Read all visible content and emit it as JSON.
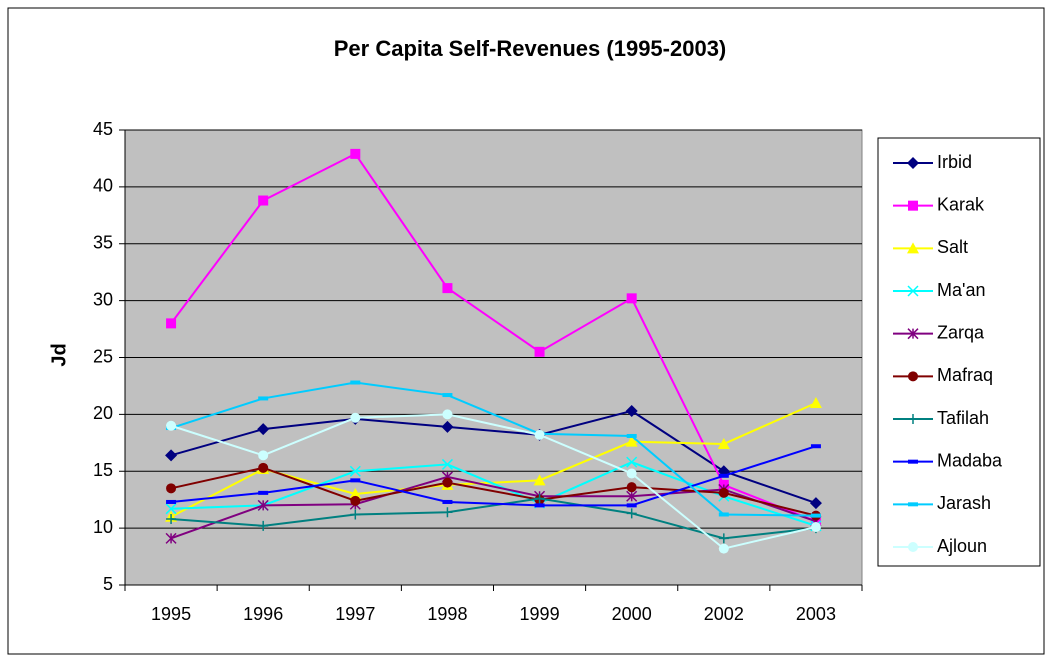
{
  "chart_data": {
    "type": "line",
    "title": "Per Capita Self-Revenues (1995-2003)",
    "y_label": "Jd",
    "categories": [
      "1995",
      "1996",
      "1997",
      "1998",
      "1999",
      "2000",
      "2002",
      "2003"
    ],
    "ylim": [
      5,
      45
    ],
    "yticks": [
      5,
      10,
      15,
      20,
      25,
      30,
      35,
      40,
      45
    ],
    "grid": true,
    "legend": "right",
    "series": [
      {
        "name": "Irbid",
        "color": "#000080",
        "marker": "diamond",
        "values": [
          16.4,
          18.7,
          19.6,
          18.9,
          18.2,
          20.3,
          15.0,
          12.2
        ]
      },
      {
        "name": "Karak",
        "color": "#ff00ff",
        "marker": "square",
        "values": [
          28.0,
          38.8,
          42.9,
          31.1,
          25.5,
          30.2,
          13.8,
          10.6
        ]
      },
      {
        "name": "Salt",
        "color": "#ffff00",
        "marker": "triangle",
        "values": [
          11.0,
          15.2,
          13.0,
          13.8,
          14.2,
          17.6,
          17.4,
          21.0
        ]
      },
      {
        "name": "Ma'an",
        "color": "#00ffff",
        "marker": "x",
        "values": [
          11.7,
          12.0,
          15.0,
          15.6,
          12.2,
          15.8,
          12.8,
          10.2
        ]
      },
      {
        "name": "Zarqa",
        "color": "#800080",
        "marker": "star",
        "values": [
          9.1,
          12.0,
          12.1,
          14.5,
          12.8,
          12.8,
          13.4,
          10.6
        ]
      },
      {
        "name": "Mafraq",
        "color": "#800000",
        "marker": "circle",
        "values": [
          13.5,
          15.3,
          12.4,
          14.0,
          12.5,
          13.6,
          13.1,
          11.1
        ]
      },
      {
        "name": "Tafilah",
        "color": "#008080",
        "marker": "plus",
        "values": [
          10.8,
          10.2,
          11.2,
          11.4,
          12.6,
          11.3,
          9.1,
          10.0
        ]
      },
      {
        "name": "Madaba",
        "color": "#0000ff",
        "marker": "dash",
        "values": [
          12.3,
          13.1,
          14.2,
          12.3,
          12.0,
          12.0,
          14.6,
          17.2
        ]
      },
      {
        "name": "Jarash",
        "color": "#00ccff",
        "marker": "dash",
        "values": [
          18.8,
          21.4,
          22.8,
          21.7,
          18.3,
          18.1,
          11.2,
          11.1
        ]
      },
      {
        "name": "Ajloun",
        "color": "#ccffff",
        "marker": "circle",
        "values": [
          19.0,
          16.4,
          19.7,
          20.0,
          18.2,
          14.8,
          8.2,
          10.1
        ]
      }
    ]
  }
}
